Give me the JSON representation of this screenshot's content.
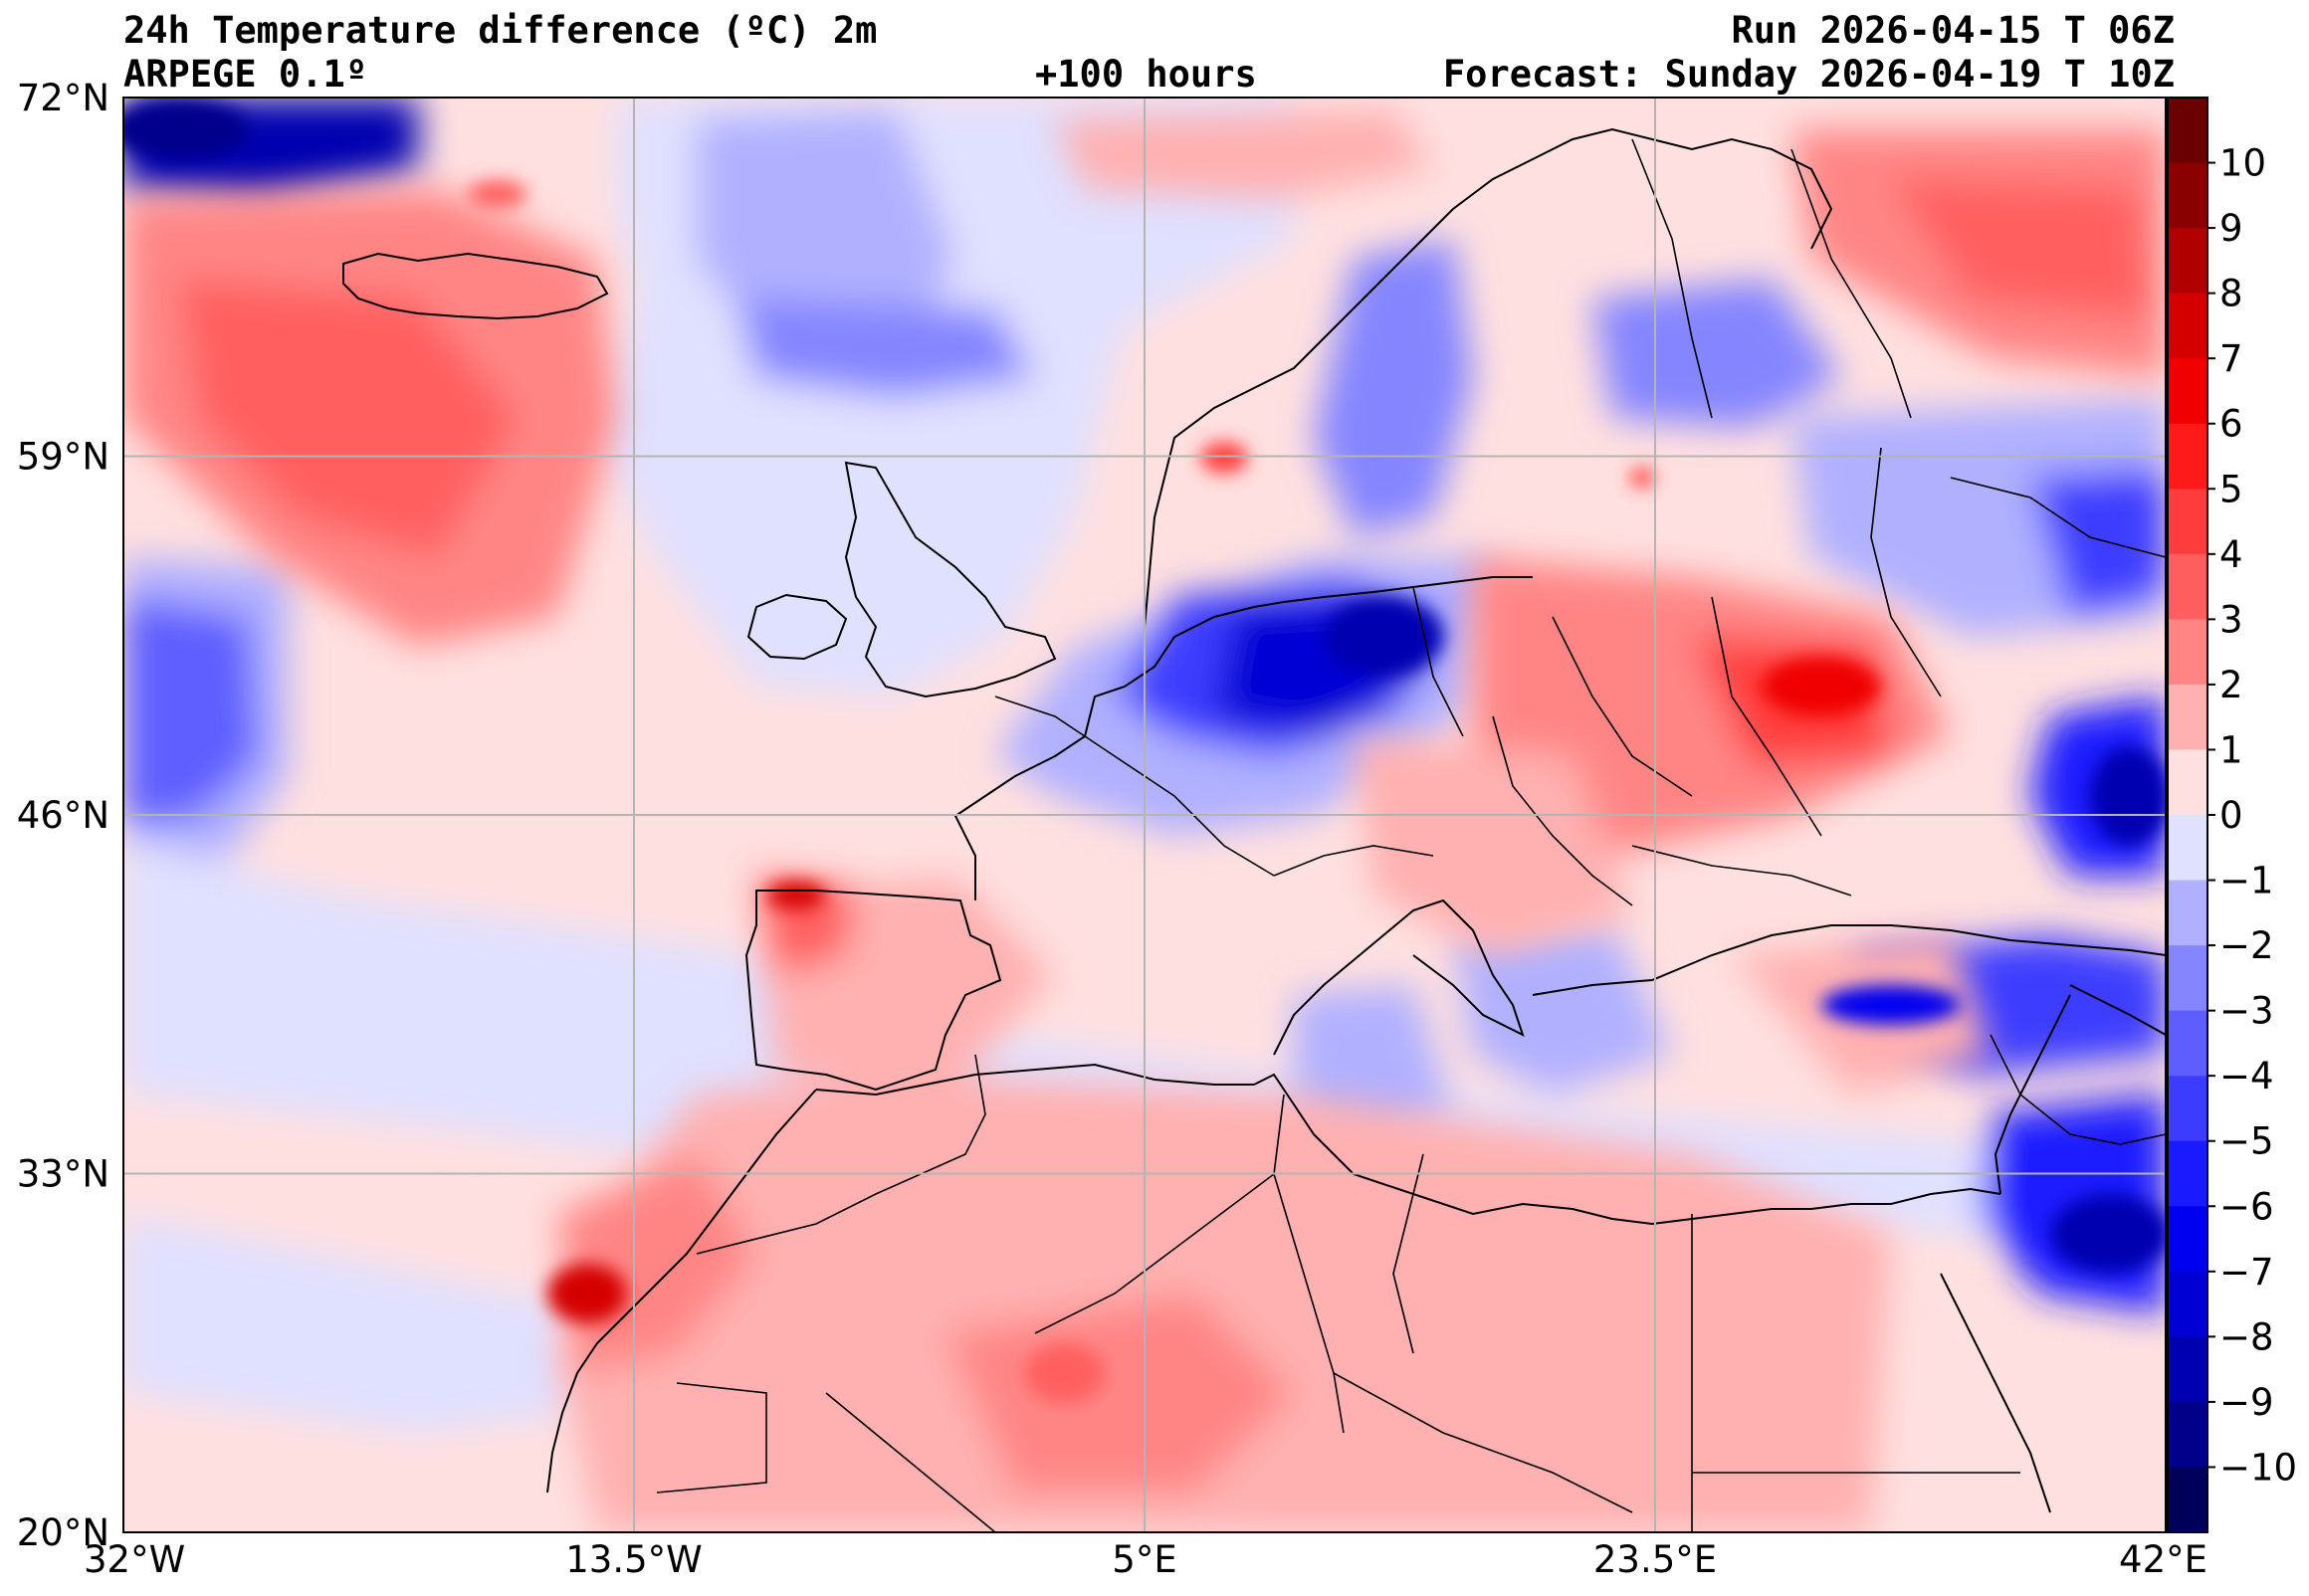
{
  "header": {
    "title": "24h Temperature difference (ºC) 2m",
    "model": "ARPEGE 0.1º",
    "lead_time": "+100 hours",
    "run": "Run 2026-04-15 T 06Z",
    "forecast": "Forecast: Sunday 2026-04-19 T 10Z"
  },
  "map": {
    "lat_range": [
      20,
      72
    ],
    "lon_range": [
      -32,
      42
    ],
    "lat_ticks": [
      {
        "value": 72,
        "label": "72°N"
      },
      {
        "value": 59,
        "label": "59°N"
      },
      {
        "value": 46,
        "label": "46°N"
      },
      {
        "value": 33,
        "label": "33°N"
      },
      {
        "value": 20,
        "label": "20°N"
      }
    ],
    "lon_ticks": [
      {
        "value": -32,
        "label": "32°W"
      },
      {
        "value": -13.5,
        "label": "13.5°W"
      },
      {
        "value": 5,
        "label": "5°E"
      },
      {
        "value": 23.5,
        "label": "23.5°E"
      },
      {
        "value": 42,
        "label": "42°E"
      }
    ]
  },
  "colorbar": {
    "min": -11,
    "max": 11,
    "tick_labels": [
      {
        "value": 10,
        "label": "10"
      },
      {
        "value": 9,
        "label": "9"
      },
      {
        "value": 8,
        "label": "8"
      },
      {
        "value": 7,
        "label": "7"
      },
      {
        "value": 6,
        "label": "6"
      },
      {
        "value": 5,
        "label": "5"
      },
      {
        "value": 4,
        "label": "4"
      },
      {
        "value": 3,
        "label": "3"
      },
      {
        "value": 2,
        "label": "2"
      },
      {
        "value": 1,
        "label": "1"
      },
      {
        "value": 0,
        "label": "0"
      },
      {
        "value": -1,
        "label": "−1"
      },
      {
        "value": -2,
        "label": "−2"
      },
      {
        "value": -3,
        "label": "−3"
      },
      {
        "value": -4,
        "label": "−4"
      },
      {
        "value": -5,
        "label": "−5"
      },
      {
        "value": -6,
        "label": "−6"
      },
      {
        "value": -7,
        "label": "−7"
      },
      {
        "value": -8,
        "label": "−8"
      },
      {
        "value": -9,
        "label": "−9"
      },
      {
        "value": -10,
        "label": "−10"
      }
    ],
    "bands": [
      {
        "from": 10,
        "to": 11,
        "color": "#6b0000"
      },
      {
        "from": 9,
        "to": 10,
        "color": "#8b0000"
      },
      {
        "from": 8,
        "to": 9,
        "color": "#b00000"
      },
      {
        "from": 7,
        "to": 8,
        "color": "#d40000"
      },
      {
        "from": 6,
        "to": 7,
        "color": "#f00000"
      },
      {
        "from": 5,
        "to": 6,
        "color": "#ff1a1a"
      },
      {
        "from": 4,
        "to": 5,
        "color": "#ff3c3c"
      },
      {
        "from": 3,
        "to": 4,
        "color": "#ff5e5e"
      },
      {
        "from": 2,
        "to": 3,
        "color": "#ff8585"
      },
      {
        "from": 1,
        "to": 2,
        "color": "#ffb0b0"
      },
      {
        "from": 0,
        "to": 1,
        "color": "#ffe0e0"
      },
      {
        "from": -1,
        "to": 0,
        "color": "#e0e0ff"
      },
      {
        "from": -2,
        "to": -1,
        "color": "#b0b0ff"
      },
      {
        "from": -3,
        "to": -2,
        "color": "#8585ff"
      },
      {
        "from": -4,
        "to": -3,
        "color": "#5e5eff"
      },
      {
        "from": -5,
        "to": -4,
        "color": "#3c3cff"
      },
      {
        "from": -6,
        "to": -5,
        "color": "#1a1aff"
      },
      {
        "from": -7,
        "to": -6,
        "color": "#0000f0"
      },
      {
        "from": -8,
        "to": -7,
        "color": "#0000d4"
      },
      {
        "from": -9,
        "to": -8,
        "color": "#0000b0"
      },
      {
        "from": -10,
        "to": -9,
        "color": "#00008b"
      },
      {
        "from": -11,
        "to": -10,
        "color": "#00005a"
      }
    ]
  }
}
